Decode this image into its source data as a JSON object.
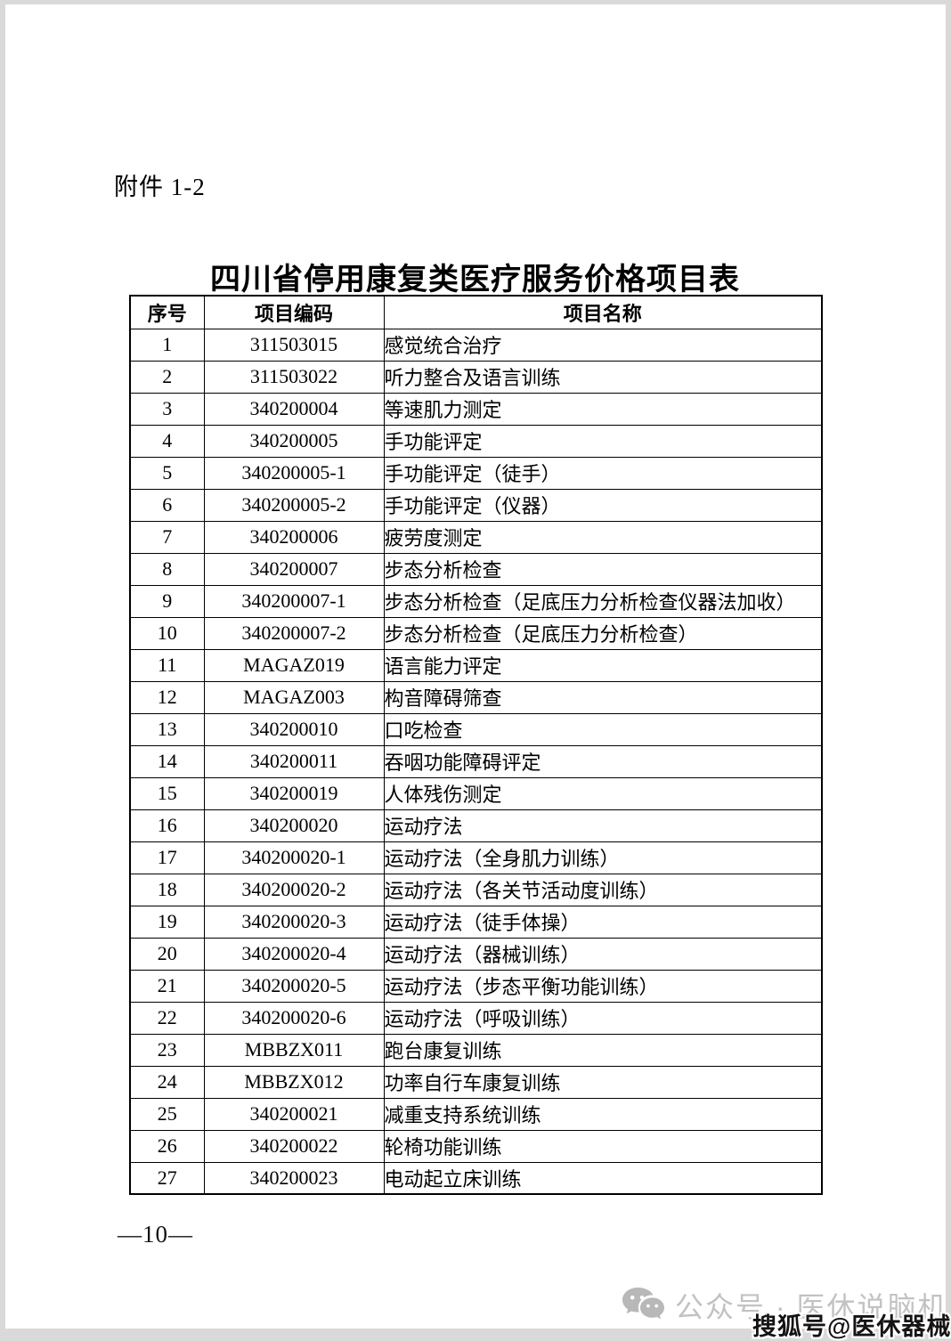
{
  "page": {
    "attachment_label": "附件 1-2",
    "title": "四川省停用康复类医疗服务价格项目表",
    "page_number": "—10—"
  },
  "table": {
    "headers": [
      "序号",
      "项目编码",
      "项目名称"
    ],
    "rows": [
      [
        "1",
        "311503015",
        "感觉统合治疗"
      ],
      [
        "2",
        "311503022",
        "听力整合及语言训练"
      ],
      [
        "3",
        "340200004",
        "等速肌力测定"
      ],
      [
        "4",
        "340200005",
        "手功能评定"
      ],
      [
        "5",
        "340200005-1",
        "手功能评定（徒手）"
      ],
      [
        "6",
        "340200005-2",
        "手功能评定（仪器）"
      ],
      [
        "7",
        "340200006",
        "疲劳度测定"
      ],
      [
        "8",
        "340200007",
        "步态分析检查"
      ],
      [
        "9",
        "340200007-1",
        "步态分析检查（足底压力分析检查仪器法加收）"
      ],
      [
        "10",
        "340200007-2",
        "步态分析检查（足底压力分析检查）"
      ],
      [
        "11",
        "MAGAZ019",
        "语言能力评定"
      ],
      [
        "12",
        "MAGAZ003",
        "构音障碍筛查"
      ],
      [
        "13",
        "340200010",
        "口吃检查"
      ],
      [
        "14",
        "340200011",
        "吞咽功能障碍评定"
      ],
      [
        "15",
        "340200019",
        "人体残伤测定"
      ],
      [
        "16",
        "340200020",
        "运动疗法"
      ],
      [
        "17",
        "340200020-1",
        "运动疗法（全身肌力训练）"
      ],
      [
        "18",
        "340200020-2",
        "运动疗法（各关节活动度训练）"
      ],
      [
        "19",
        "340200020-3",
        "运动疗法（徒手体操）"
      ],
      [
        "20",
        "340200020-4",
        "运动疗法（器械训练）"
      ],
      [
        "21",
        "340200020-5",
        "运动疗法（步态平衡功能训练）"
      ],
      [
        "22",
        "340200020-6",
        "运动疗法（呼吸训练）"
      ],
      [
        "23",
        "MBBZX011",
        "跑台康复训练"
      ],
      [
        "24",
        "MBBZX012",
        "功率自行车康复训练"
      ],
      [
        "25",
        "340200021",
        "减重支持系统训练"
      ],
      [
        "26",
        "340200022",
        "轮椅功能训练"
      ],
      [
        "27",
        "340200023",
        "电动起立床训练"
      ]
    ]
  },
  "watermark": {
    "wechat_icon": "wechat-icon",
    "wechat_text": "公众号 · 医休说脑机",
    "sohu_text": "搜狐号@医休器械"
  },
  "colors": {
    "page_background": "#ffffff",
    "canvas_background": "#d9d9d9",
    "text": "#000000",
    "watermark_gray": "#c2c2c2",
    "watermark_dark": "#141414"
  }
}
